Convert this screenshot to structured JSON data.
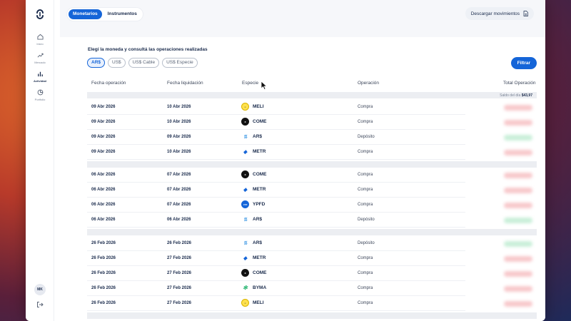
{
  "sidebar": {
    "items": [
      {
        "label": "Inicio",
        "icon": "home-icon"
      },
      {
        "label": "Mercado",
        "icon": "trend-icon"
      },
      {
        "label": "Actividad",
        "icon": "bar-chart-icon"
      },
      {
        "label": "Portfolio",
        "icon": "pie-chart-icon"
      }
    ],
    "avatar": "MK"
  },
  "tabs": {
    "monetarios": "Monetarios",
    "instrumentos": "Instrumentos"
  },
  "download_label": "Descargar movimientos",
  "subtitle": "Elegí la moneda y consultá las operaciones realizadas",
  "currency_chips": [
    "AR$",
    "US$",
    "US$ Cable",
    "US$ Especie"
  ],
  "filter_label": "Filtrar",
  "columns": {
    "fecha_operacion": "Fecha operación",
    "fecha_liquidacion": "Fecha liquidación",
    "especie": "Especie",
    "operacion": "Operación",
    "total": "Total Operación"
  },
  "saldo": {
    "label": "Saldo del día",
    "value": "$43,97"
  },
  "rows": [
    {
      "op_date": "09 Abr 2026",
      "liq_date": "10 Abr 2026",
      "species": "MELI",
      "operation": "Compra"
    },
    {
      "op_date": "09 Abr 2026",
      "liq_date": "10 Abr 2026",
      "species": "COME",
      "operation": "Compra"
    },
    {
      "op_date": "09 Abr 2026",
      "liq_date": "09 Abr 2026",
      "species": "AR$",
      "operation": "Depósito"
    },
    {
      "op_date": "09 Abr 2026",
      "liq_date": "10 Abr 2026",
      "species": "METR",
      "operation": "Compra"
    },
    {
      "op_date": "06 Abr 2026",
      "liq_date": "07 Abr 2026",
      "species": "COME",
      "operation": "Compra"
    },
    {
      "op_date": "06 Abr 2026",
      "liq_date": "07 Abr 2026",
      "species": "METR",
      "operation": "Compra"
    },
    {
      "op_date": "06 Abr 2026",
      "liq_date": "07 Abr 2026",
      "species": "YPFD",
      "operation": "Compra"
    },
    {
      "op_date": "06 Abr 2026",
      "liq_date": "06 Abr 2026",
      "species": "AR$",
      "operation": "Depósito"
    },
    {
      "op_date": "26 Feb 2026",
      "liq_date": "26 Feb 2026",
      "species": "AR$",
      "operation": "Depósito"
    },
    {
      "op_date": "26 Feb 2026",
      "liq_date": "27 Feb 2026",
      "species": "METR",
      "operation": "Compra"
    },
    {
      "op_date": "26 Feb 2026",
      "liq_date": "27 Feb 2026",
      "species": "COME",
      "operation": "Compra"
    },
    {
      "op_date": "26 Feb 2026",
      "liq_date": "27 Feb 2026",
      "species": "BYMA",
      "operation": "Compra"
    },
    {
      "op_date": "26 Feb 2026",
      "liq_date": "27 Feb 2026",
      "species": "MELI",
      "operation": "Compra"
    }
  ]
}
